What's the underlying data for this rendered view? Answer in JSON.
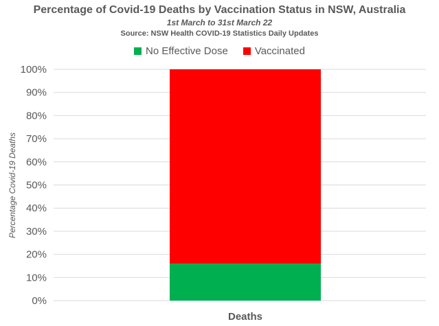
{
  "chart_data": {
    "type": "bar",
    "stacked": true,
    "title": "Percentage of Covid-19 Deaths by Vaccination Status in NSW, Australia",
    "subtitle": "1st March to 31st March 22",
    "source": "Source: NSW Health COVID-19 Statistics Daily Updates",
    "categories": [
      "Deaths"
    ],
    "series": [
      {
        "name": "No Effective Dose",
        "values": [
          16
        ],
        "color": "#00B050"
      },
      {
        "name": "Vaccinated",
        "values": [
          84
        ],
        "color": "#FF0000"
      }
    ],
    "ylabel": "Percentage Covid-19 Deaths",
    "xlabel": "",
    "ylim": [
      0,
      100
    ],
    "yticks": [
      "0%",
      "10%",
      "20%",
      "30%",
      "40%",
      "50%",
      "60%",
      "70%",
      "80%",
      "90%",
      "100%"
    ],
    "grid": true,
    "legend": "top"
  }
}
